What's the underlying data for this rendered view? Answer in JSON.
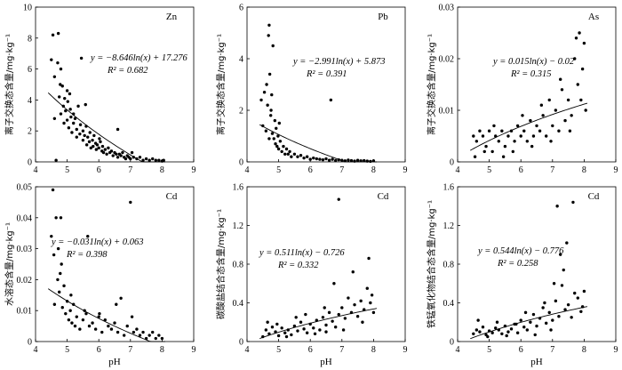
{
  "chart_data": [
    {
      "type": "scatter",
      "panel_label": "Zn",
      "ylabel": "离子交换态含量/mg·kg⁻¹",
      "xlabel": "",
      "xlim": [
        4,
        9
      ],
      "ylim": [
        0,
        10
      ],
      "xticks": [
        "4",
        "5",
        "6",
        "7",
        "8",
        "9"
      ],
      "yticks": [
        "0",
        "2",
        "4",
        "6",
        "8",
        "10"
      ],
      "equation": "y = −8.646ln(x) + 17.276",
      "r2": "R² = 0.682",
      "fit": {
        "a": -8.646,
        "b": 17.276,
        "x_range": [
          4.4,
          8.1
        ]
      },
      "points": {
        "x": [
          4.5,
          4.55,
          4.6,
          4.6,
          4.7,
          4.72,
          4.75,
          4.8,
          4.8,
          4.85,
          4.88,
          4.9,
          4.92,
          4.95,
          5.0,
          5.0,
          5.02,
          5.05,
          5.1,
          5.12,
          5.15,
          5.2,
          5.2,
          5.25,
          5.3,
          5.3,
          5.35,
          5.4,
          5.42,
          5.45,
          5.5,
          5.5,
          5.55,
          5.6,
          5.62,
          5.65,
          5.7,
          5.72,
          5.75,
          5.8,
          5.82,
          5.85,
          5.9,
          5.92,
          5.95,
          6.0,
          6.05,
          6.1,
          6.12,
          6.15,
          6.2,
          6.25,
          6.3,
          6.35,
          6.4,
          6.45,
          6.5,
          6.55,
          6.6,
          6.65,
          6.7,
          6.75,
          6.8,
          6.85,
          6.9,
          6.95,
          7.0,
          7.1,
          7.2,
          7.3,
          7.4,
          7.5,
          7.6,
          7.7,
          7.8,
          7.9,
          8.0,
          8.05,
          4.65,
          4.78,
          5.08,
          5.58,
          6.02,
          6.6,
          7.05
        ],
        "y": [
          6.6,
          8.2,
          2.8,
          5.5,
          6.4,
          8.3,
          4.2,
          3.1,
          6.0,
          4.9,
          3.6,
          2.5,
          4.1,
          3.3,
          2.7,
          4.6,
          3.9,
          2.2,
          3.4,
          2.9,
          1.9,
          3.1,
          2.5,
          2.8,
          2.1,
          1.6,
          3.6,
          1.8,
          2.4,
          6.7,
          2.0,
          1.4,
          1.7,
          2.3,
          1.1,
          1.6,
          1.3,
          1.9,
          0.9,
          1.4,
          1.0,
          1.7,
          1.2,
          0.8,
          1.1,
          0.9,
          1.3,
          0.7,
          1.0,
          0.6,
          0.8,
          0.5,
          0.9,
          0.6,
          0.7,
          0.4,
          0.6,
          0.5,
          0.3,
          0.5,
          0.4,
          0.6,
          0.3,
          0.2,
          0.4,
          0.3,
          0.2,
          0.3,
          0.2,
          0.3,
          0.1,
          0.2,
          0.1,
          0.2,
          0.1,
          0.1,
          0.05,
          0.1,
          0.1,
          5.0,
          4.4,
          3.7,
          1.5,
          2.1,
          0.6
        ]
      }
    },
    {
      "type": "scatter",
      "panel_label": "Pb",
      "ylabel": "离子交换态含量/mg·kg⁻¹",
      "xlabel": "",
      "xlim": [
        4,
        9
      ],
      "ylim": [
        0,
        6
      ],
      "xticks": [
        "4",
        "5",
        "6",
        "7",
        "8",
        "9"
      ],
      "yticks": [
        "0",
        "2",
        "4",
        "6"
      ],
      "equation": "y = −2.991ln(x) + 5.873",
      "r2": "R² = 0.391",
      "fit": {
        "a": -2.991,
        "b": 5.873,
        "x_range": [
          4.4,
          8.1
        ]
      },
      "points": {
        "x": [
          4.45,
          4.5,
          4.55,
          4.6,
          4.62,
          4.65,
          4.68,
          4.7,
          4.72,
          4.75,
          4.78,
          4.8,
          4.82,
          4.85,
          4.88,
          4.9,
          4.92,
          4.95,
          4.98,
          5.0,
          5.05,
          5.1,
          5.15,
          5.2,
          5.25,
          5.3,
          5.35,
          5.4,
          5.5,
          5.6,
          5.7,
          5.8,
          5.9,
          6.0,
          6.1,
          6.2,
          6.3,
          6.4,
          6.5,
          6.6,
          6.7,
          6.8,
          6.9,
          7.0,
          7.1,
          7.2,
          7.3,
          7.4,
          7.5,
          7.6,
          7.7,
          7.8,
          7.9,
          8.0,
          6.65,
          4.7,
          4.76,
          5.02
        ],
        "y": [
          2.4,
          1.4,
          2.7,
          1.2,
          3.0,
          2.2,
          4.9,
          5.3,
          3.4,
          1.8,
          2.6,
          1.1,
          4.5,
          0.9,
          1.6,
          0.7,
          1.3,
          0.6,
          1.0,
          0.5,
          0.8,
          0.4,
          0.6,
          0.3,
          0.5,
          0.3,
          0.4,
          0.2,
          0.3,
          0.2,
          0.25,
          0.15,
          0.2,
          0.1,
          0.15,
          0.12,
          0.1,
          0.08,
          0.12,
          0.06,
          0.1,
          0.05,
          0.08,
          0.06,
          0.04,
          0.07,
          0.05,
          0.03,
          0.06,
          0.04,
          0.05,
          0.03,
          0.02,
          0.04,
          2.4,
          0.9,
          2.0,
          1.5
        ]
      }
    },
    {
      "type": "scatter",
      "panel_label": "As",
      "ylabel": "离子交换态含量/mg·kg⁻¹",
      "xlabel": "",
      "xlim": [
        4,
        9
      ],
      "ylim": [
        0,
        0.03
      ],
      "xticks": [
        "4",
        "5",
        "6",
        "7",
        "8",
        "9"
      ],
      "yticks": [
        "0",
        "0.01",
        "0.02",
        "0.03"
      ],
      "equation": "y = 0.015ln(x) − 0.02",
      "r2": "R² = 0.315",
      "fit": {
        "a": 0.015,
        "b": -0.02,
        "x_range": [
          4.4,
          8.1
        ]
      },
      "points": {
        "x": [
          4.5,
          4.6,
          4.7,
          4.8,
          4.9,
          5.0,
          5.1,
          5.2,
          5.3,
          5.4,
          5.5,
          5.6,
          5.7,
          5.8,
          5.9,
          6.0,
          6.1,
          6.2,
          6.3,
          6.4,
          6.5,
          6.6,
          6.7,
          6.8,
          6.9,
          7.0,
          7.1,
          7.2,
          7.3,
          7.4,
          7.5,
          7.6,
          7.7,
          7.75,
          7.8,
          7.85,
          7.9,
          7.95,
          8.0,
          8.05,
          4.55,
          4.85,
          5.15,
          5.45,
          5.75,
          6.05,
          6.35,
          6.65,
          6.95,
          7.25,
          7.55
        ],
        "y": [
          0.005,
          0.004,
          0.006,
          0.005,
          0.003,
          0.006,
          0.002,
          0.005,
          0.004,
          0.006,
          0.003,
          0.005,
          0.006,
          0.004,
          0.007,
          0.005,
          0.006,
          0.004,
          0.008,
          0.005,
          0.007,
          0.006,
          0.009,
          0.005,
          0.012,
          0.007,
          0.01,
          0.006,
          0.014,
          0.008,
          0.012,
          0.009,
          0.02,
          0.024,
          0.015,
          0.025,
          0.012,
          0.018,
          0.023,
          0.01,
          0.001,
          0.002,
          0.007,
          0.001,
          0.002,
          0.009,
          0.003,
          0.011,
          0.004,
          0.016,
          0.006
        ]
      }
    },
    {
      "type": "scatter",
      "panel_label": "Cd",
      "ylabel": "水溶态含量/mg·kg⁻¹",
      "xlabel": "pH",
      "xlim": [
        4,
        9
      ],
      "ylim": [
        0,
        0.05
      ],
      "xticks": [
        "4",
        "5",
        "6",
        "7",
        "8",
        "9"
      ],
      "yticks": [
        "0",
        "0.01",
        "0.02",
        "0.03",
        "0.04",
        "0.05"
      ],
      "equation": "y = −0.031ln(x) + 0.063",
      "r2": "R² = 0.398",
      "fit": {
        "a": -0.031,
        "b": 0.063,
        "x_range": [
          4.4,
          8.1
        ]
      },
      "points": {
        "x": [
          4.5,
          4.55,
          4.6,
          4.65,
          4.7,
          4.72,
          4.75,
          4.8,
          4.82,
          4.85,
          4.9,
          4.95,
          5.0,
          5.05,
          5.1,
          5.15,
          5.2,
          5.25,
          5.3,
          5.4,
          5.5,
          5.6,
          5.65,
          5.7,
          5.8,
          5.9,
          6.0,
          6.1,
          6.2,
          6.3,
          6.4,
          6.5,
          6.6,
          6.7,
          6.8,
          6.9,
          7.0,
          7.1,
          7.2,
          7.3,
          7.4,
          7.5,
          7.6,
          7.7,
          7.8,
          7.9,
          8.0,
          4.58,
          4.78,
          5.12,
          5.55,
          6.02,
          6.55,
          7.05
        ],
        "y": [
          0.034,
          0.049,
          0.012,
          0.04,
          0.02,
          0.03,
          0.016,
          0.04,
          0.025,
          0.011,
          0.018,
          0.009,
          0.013,
          0.007,
          0.01,
          0.006,
          0.012,
          0.005,
          0.008,
          0.004,
          0.007,
          0.009,
          0.034,
          0.005,
          0.006,
          0.004,
          0.008,
          0.003,
          0.007,
          0.005,
          0.004,
          0.006,
          0.003,
          0.014,
          0.002,
          0.005,
          0.045,
          0.003,
          0.004,
          0.002,
          0.003,
          0.001,
          0.002,
          0.003,
          0.001,
          0.002,
          0.001,
          0.028,
          0.022,
          0.015,
          0.01,
          0.009,
          0.012,
          0.008
        ]
      }
    },
    {
      "type": "scatter",
      "panel_label": "Cd",
      "ylabel": "碳酸盐结合态含量/mg·kg⁻¹",
      "xlabel": "pH",
      "xlim": [
        4,
        9
      ],
      "ylim": [
        0,
        1.6
      ],
      "xticks": [
        "4",
        "5",
        "6",
        "7",
        "8",
        "9"
      ],
      "yticks": [
        "0",
        "0.4",
        "0.8",
        "1.2",
        "1.6"
      ],
      "equation": "y = 0.511ln(x) − 0.726",
      "r2": "R² = 0.332",
      "fit": {
        "a": 0.511,
        "b": -0.726,
        "x_range": [
          4.4,
          8.1
        ]
      },
      "points": {
        "x": [
          4.5,
          4.6,
          4.7,
          4.8,
          4.9,
          5.0,
          5.1,
          5.2,
          5.3,
          5.4,
          5.5,
          5.6,
          5.7,
          5.8,
          5.9,
          6.0,
          6.1,
          6.2,
          6.3,
          6.4,
          6.5,
          6.6,
          6.7,
          6.8,
          6.9,
          7.0,
          7.1,
          7.2,
          7.3,
          7.4,
          7.5,
          7.6,
          7.7,
          7.8,
          7.9,
          8.0,
          4.65,
          4.95,
          5.25,
          5.55,
          5.85,
          6.15,
          6.45,
          6.75,
          7.05,
          7.35,
          7.65,
          7.95,
          6.9,
          7.85,
          6.5
        ],
        "y": [
          0.05,
          0.12,
          0.08,
          0.15,
          0.1,
          0.06,
          0.14,
          0.09,
          0.12,
          0.07,
          0.16,
          0.11,
          0.2,
          0.13,
          0.09,
          0.18,
          0.14,
          0.22,
          0.12,
          0.25,
          0.17,
          0.3,
          0.21,
          0.15,
          0.28,
          0.35,
          0.24,
          0.45,
          0.3,
          0.38,
          0.26,
          0.42,
          0.33,
          0.55,
          0.4,
          0.3,
          0.2,
          0.18,
          0.05,
          0.25,
          0.28,
          0.08,
          0.35,
          0.6,
          0.12,
          0.72,
          0.2,
          0.48,
          1.47,
          0.86,
          0.1
        ]
      }
    },
    {
      "type": "scatter",
      "panel_label": "Cd",
      "ylabel": "铁锰氧化物结合态含量/mg·kg⁻¹",
      "xlabel": "pH",
      "xlim": [
        4,
        9
      ],
      "ylim": [
        0,
        1.6
      ],
      "xticks": [
        "4",
        "5",
        "6",
        "7",
        "8",
        "9"
      ],
      "yticks": [
        "0",
        "0.4",
        "0.8",
        "1.2",
        "1.6"
      ],
      "equation": "y = 0.544ln(x) − 0.776",
      "r2": "R² = 0.258",
      "fit": {
        "a": 0.544,
        "b": -0.776,
        "x_range": [
          4.4,
          8.1
        ]
      },
      "points": {
        "x": [
          4.5,
          4.6,
          4.7,
          4.8,
          4.9,
          5.0,
          5.1,
          5.2,
          5.3,
          5.4,
          5.5,
          5.6,
          5.7,
          5.8,
          5.9,
          6.0,
          6.1,
          6.2,
          6.3,
          6.4,
          6.5,
          6.6,
          6.7,
          6.8,
          6.9,
          7.0,
          7.1,
          7.2,
          7.3,
          7.4,
          7.5,
          7.6,
          7.7,
          7.8,
          7.9,
          8.0,
          4.65,
          4.95,
          5.25,
          5.55,
          5.85,
          6.15,
          6.45,
          6.75,
          7.05,
          7.15,
          7.35,
          7.45,
          7.65,
          7.95,
          6.95,
          7.25
        ],
        "y": [
          0.08,
          0.12,
          0.1,
          0.15,
          0.07,
          0.11,
          0.09,
          0.14,
          0.12,
          0.08,
          0.16,
          0.1,
          0.13,
          0.18,
          0.09,
          0.22,
          0.15,
          0.12,
          0.2,
          0.28,
          0.16,
          0.24,
          0.35,
          0.19,
          0.3,
          0.22,
          0.42,
          0.26,
          0.58,
          0.33,
          0.38,
          0.25,
          0.5,
          0.45,
          0.31,
          0.52,
          0.22,
          0.05,
          0.2,
          0.06,
          0.18,
          0.3,
          0.07,
          0.4,
          0.6,
          1.4,
          0.74,
          1.02,
          1.44,
          0.36,
          0.12,
          0.9
        ]
      }
    }
  ]
}
